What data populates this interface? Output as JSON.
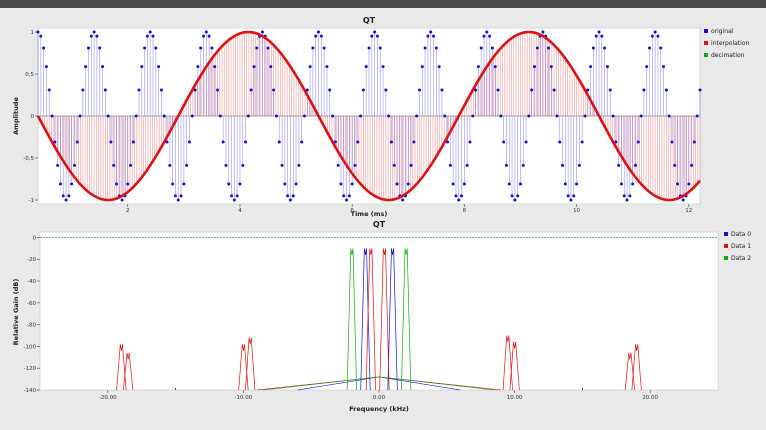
{
  "window": {
    "topbar_color": "#4a4a4a"
  },
  "chart_data": [
    {
      "type": "line",
      "title": "QT",
      "xlabel": "Time (ms)",
      "ylabel": "Amplitude",
      "xlim": [
        0.4,
        12.2
      ],
      "ylim": [
        -1,
        1
      ],
      "x_ticks": [
        2,
        4,
        6,
        8,
        10,
        12
      ],
      "y_ticks": [
        1,
        0.5,
        0,
        -0.5,
        -1
      ],
      "x_tick_labels": [
        "2",
        "4",
        "6",
        "8",
        "10",
        "12"
      ],
      "y_tick_labels": [
        "1",
        "0,5",
        "0",
        "-0,5",
        "-1"
      ],
      "grid": false,
      "legend_position": "right",
      "series": [
        {
          "name": "original",
          "color": "#1111dd",
          "kind": "stems-dots",
          "frequency_khz": 1.0,
          "phase_ms": 0.4,
          "sample_step_ms": 0.05,
          "x_start": 0.4,
          "x_end": 12.2
        },
        {
          "name": "interpolation",
          "color": "#dd1111",
          "kind": "stems-line",
          "frequency_khz": 0.2,
          "amplitude": -1,
          "phase_ms": 0.4,
          "sample_step_ms": 0.04,
          "x_start": 0.4,
          "x_end": 12.2
        },
        {
          "name": "decimation",
          "color": "#11aa11",
          "kind": "none"
        }
      ]
    },
    {
      "type": "line",
      "title": "QT",
      "xlabel": "Frequency (kHz)",
      "ylabel": "Relative Gain (dB)",
      "xlim": [
        -25,
        25
      ],
      "ylim": [
        -140,
        5
      ],
      "x_ticks": [
        -20,
        -10,
        0,
        10,
        20
      ],
      "y_ticks": [
        0,
        -20,
        -40,
        -60,
        -80,
        -100,
        -120,
        -140
      ],
      "x_tick_labels": [
        "-20.00",
        "-10.00",
        "0.00",
        "10.00",
        "20.00"
      ],
      "y_tick_labels": [
        "0",
        "-20",
        "-40",
        "-60",
        "-80",
        "-100",
        "-120",
        "-140"
      ],
      "grid": false,
      "legend_position": "right",
      "series": [
        {
          "name": "Data 0",
          "color": "#1111dd",
          "peaks": [
            [
              -1,
              -16
            ],
            [
              1,
              -16
            ]
          ],
          "spurs": [
            [
              -15,
              -138
            ],
            [
              15,
              -138
            ]
          ],
          "floor_range": [
            -6,
            6
          ]
        },
        {
          "name": "Data 1",
          "color": "#dd1111",
          "peaks": [
            [
              -0.6,
              -16
            ],
            [
              0.4,
              -16
            ],
            [
              -19,
              -104
            ],
            [
              -18.5,
              -112
            ],
            [
              -10,
              -104
            ],
            [
              -9.5,
              -98
            ],
            [
              9.5,
              -96
            ],
            [
              10,
              -102
            ],
            [
              18.5,
              -112
            ],
            [
              19,
              -104
            ]
          ],
          "spurs": [],
          "floor_range": [
            -9,
            9
          ]
        },
        {
          "name": "Data 2",
          "color": "#11aa11",
          "peaks": [
            [
              -2,
              -16
            ],
            [
              2,
              -16
            ]
          ],
          "spurs": [],
          "floor_range": [
            -8.5,
            8.5
          ]
        }
      ],
      "reference_line": {
        "y": 0,
        "color": "#5aa0a0"
      }
    }
  ]
}
